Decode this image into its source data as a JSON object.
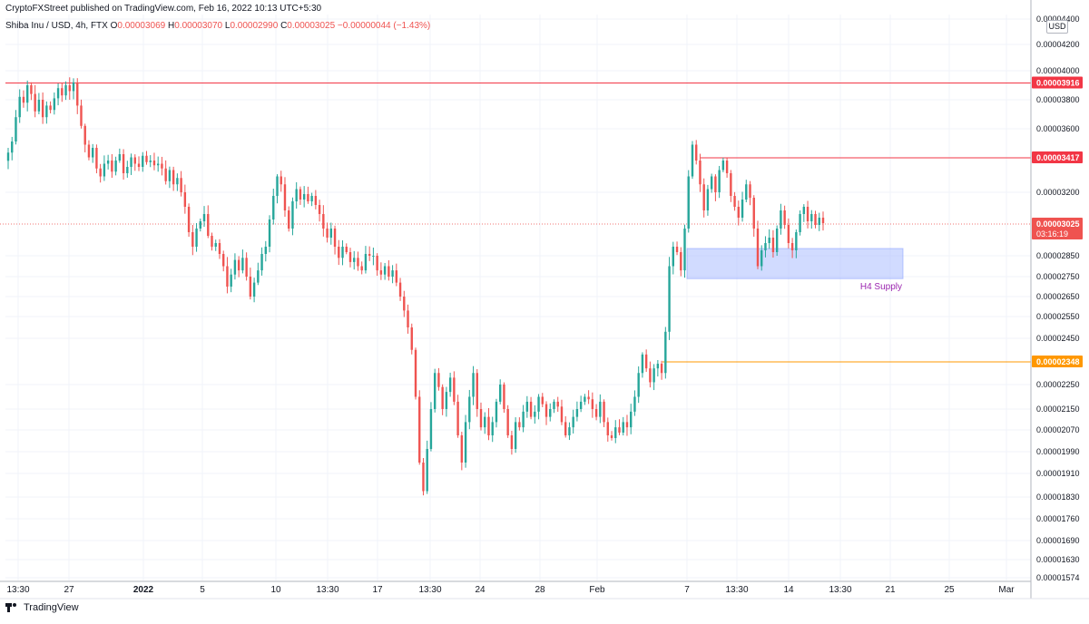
{
  "header": {
    "publisher": "CryptoFXStreet published on TradingView.com, Feb 16, 2022 10:13 UTC+5:30",
    "symbol": "Shiba Inu / USD, 4h, FTX",
    "o_label": "O",
    "o_value": "0.00003069",
    "h_label": "H",
    "h_value": "0.00003070",
    "l_label": "L",
    "l_value": "0.00002990",
    "c_label": "C",
    "c_value": "0.00003025",
    "change": "−0.00000044 (−1.43%)"
  },
  "unit_label": "USD",
  "footer": {
    "brand": "TradingView"
  },
  "colors": {
    "up": "#26a69a",
    "down": "#ef5350",
    "resistance": "#f23645",
    "support": "#ff9800",
    "zone": "#a4b8ff",
    "zone_label": "#9c27b0",
    "grid": "#f0f3fa"
  },
  "chart_data": {
    "type": "candlestick",
    "title": "",
    "ylim": [
      1.574e-05,
      4.4e-05
    ],
    "y_ticks": [
      "0.00004400",
      "0.00004200",
      "0.00004000",
      "0.00003800",
      "0.00003600",
      "0.00003200",
      "0.00002850",
      "0.00002750",
      "0.00002650",
      "0.00002550",
      "0.00002450",
      "0.00002250",
      "0.00002150",
      "0.00002070",
      "0.00001990",
      "0.00001910",
      "0.00001830",
      "0.00001760",
      "0.00001690",
      "0.00001630",
      "0.00001574"
    ],
    "x_ticks": [
      "13:30",
      "27",
      "2022",
      "5",
      "10",
      "13:30",
      "17",
      "13:30",
      "24",
      "28",
      "Feb",
      "7",
      "13:30",
      "14",
      "13:30",
      "21",
      "25",
      "Mar"
    ],
    "price_lines": [
      {
        "label": "0.00003916",
        "value": 3.916e-05,
        "color": "resistance",
        "style": "solid"
      },
      {
        "label": "0.00003417",
        "value": 3.417e-05,
        "color": "resistance",
        "style": "solid"
      },
      {
        "label": "0.00003025",
        "value": 3.025e-05,
        "color": "down",
        "style": "dotted",
        "countdown": "03:16:19"
      },
      {
        "label": "0.00002348",
        "value": 2.348e-05,
        "color": "support",
        "style": "solid"
      }
    ],
    "zone": {
      "label": "H4 Supply",
      "top": 2.89e-05,
      "bottom": 2.74e-05
    },
    "closes": [
      3.45e-05,
      3.52e-05,
      3.68e-05,
      3.82e-05,
      3.78e-05,
      3.9e-05,
      3.84e-05,
      3.72e-05,
      3.8e-05,
      3.68e-05,
      3.76e-05,
      3.73e-05,
      3.81e-05,
      3.88e-05,
      3.83e-05,
      3.9e-05,
      3.86e-05,
      3.92e-05,
      3.76e-05,
      3.62e-05,
      3.5e-05,
      3.42e-05,
      3.48e-05,
      3.35e-05,
      3.3e-05,
      3.38e-05,
      3.4e-05,
      3.33e-05,
      3.4e-05,
      3.44e-05,
      3.32e-05,
      3.36e-05,
      3.42e-05,
      3.38e-05,
      3.36e-05,
      3.43e-05,
      3.39e-05,
      3.4e-05,
      3.37e-05,
      3.38e-05,
      3.35e-05,
      3.27e-05,
      3.34e-05,
      3.25e-05,
      3.29e-05,
      3.2e-05,
      3.12e-05,
      2.98e-05,
      2.9e-05,
      3e-05,
      3.04e-05,
      3.08e-05,
      2.96e-05,
      2.9e-05,
      2.92e-05,
      2.86e-05,
      2.8e-05,
      2.7e-05,
      2.76e-05,
      2.83e-05,
      2.78e-05,
      2.84e-05,
      2.75e-05,
      2.65e-05,
      2.72e-05,
      2.78e-05,
      2.86e-05,
      2.9e-05,
      3.05e-05,
      3.18e-05,
      3.3e-05,
      3.25e-05,
      3.1e-05,
      3e-05,
      3.15e-05,
      3.22e-05,
      3.16e-05,
      3.19e-05,
      3.15e-05,
      3.18e-05,
      3.13e-05,
      3.08e-05,
      3e-05,
      2.95e-05,
      3e-05,
      2.9e-05,
      2.84e-05,
      2.9e-05,
      2.87e-05,
      2.82e-05,
      2.84e-05,
      2.8e-05,
      2.78e-05,
      2.86e-05,
      2.85e-05,
      2.85e-05,
      2.78e-05,
      2.76e-05,
      2.8e-05,
      2.75e-05,
      2.78e-05,
      2.72e-05,
      2.65e-05,
      2.58e-05,
      2.5e-05,
      2.4e-05,
      2.2e-05,
      1.95e-05,
      1.85e-05,
      2e-05,
      2.15e-05,
      2.3e-05,
      2.24e-05,
      2.15e-05,
      2.22e-05,
      2.28e-05,
      2.18e-05,
      2.05e-05,
      1.95e-05,
      2.1e-05,
      2.2e-05,
      2.3e-05,
      2.15e-05,
      2.08e-05,
      2.12e-05,
      2.05e-05,
      2.1e-05,
      2.18e-05,
      2.25e-05,
      2.15e-05,
      2.05e-05,
      2e-05,
      2.1e-05,
      2.08e-05,
      2.14e-05,
      2.18e-05,
      2.12e-05,
      2.14e-05,
      2.2e-05,
      2.17e-05,
      2.12e-05,
      2.15e-05,
      2.18e-05,
      2.16e-05,
      2.1e-05,
      2.05e-05,
      2.08e-05,
      2.12e-05,
      2.15e-05,
      2.18e-05,
      2.2e-05,
      2.19e-05,
      2.15e-05,
      2.12e-05,
      2.18e-05,
      2.1e-05,
      2.05e-05,
      2.04e-05,
      2.08e-05,
      2.06e-05,
      2.1e-05,
      2.08e-05,
      2.14e-05,
      2.2e-05,
      2.3e-05,
      2.38e-05,
      2.32e-05,
      2.26e-05,
      2.32e-05,
      2.34e-05,
      2.3e-05,
      2.48e-05,
      2.8e-05,
      2.9e-05,
      2.87e-05,
      2.78e-05,
      3e-05,
      3.3e-05,
      3.5e-05,
      3.4e-05,
      3.25e-05,
      3.1e-05,
      3.22e-05,
      3.3e-05,
      3.2e-05,
      3.34e-05,
      3.4e-05,
      3.32e-05,
      3.18e-05,
      3.12e-05,
      3.06e-05,
      3.16e-05,
      3.25e-05,
      3.17e-05,
      3e-05,
      2.8e-05,
      2.88e-05,
      2.92e-05,
      2.95e-05,
      2.87e-05,
      3e-05,
      3.1e-05,
      3.02e-05,
      2.92e-05,
      2.88e-05,
      2.98e-05,
      3.08e-05,
      3.12e-05,
      3.04e-05,
      3.08e-05,
      3.02e-05,
      3.06e-05,
      3.03e-05
    ]
  }
}
